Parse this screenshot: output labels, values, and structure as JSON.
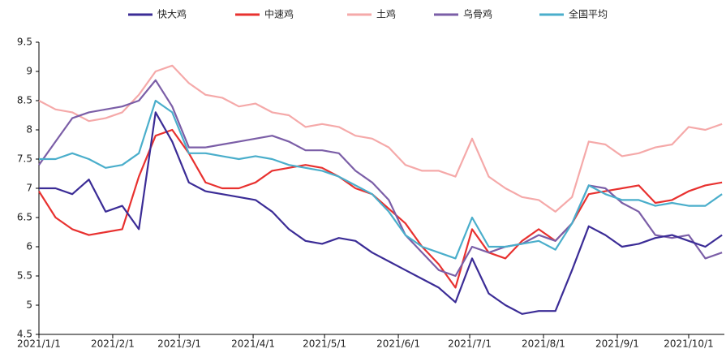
{
  "chart_data": {
    "type": "line",
    "x": [
      "2021/1/1",
      "2021/1/8",
      "2021/1/15",
      "2021/1/22",
      "2021/1/29",
      "2021/2/5",
      "2021/2/12",
      "2021/2/19",
      "2021/2/26",
      "2021/3/5",
      "2021/3/12",
      "2021/3/19",
      "2021/3/26",
      "2021/4/2",
      "2021/4/9",
      "2021/4/16",
      "2021/4/23",
      "2021/4/30",
      "2021/5/7",
      "2021/5/14",
      "2021/5/21",
      "2021/5/28",
      "2021/6/4",
      "2021/6/11",
      "2021/6/18",
      "2021/6/25",
      "2021/7/2",
      "2021/7/9",
      "2021/7/16",
      "2021/7/23",
      "2021/7/30",
      "2021/8/6",
      "2021/8/13",
      "2021/8/20",
      "2021/8/27",
      "2021/9/3",
      "2021/9/10",
      "2021/9/17",
      "2021/9/24",
      "2021/10/1",
      "2021/10/8",
      "2021/10/15"
    ],
    "series": [
      {
        "name": "快大鸡",
        "color": "#3b2c96",
        "values": [
          7.0,
          7.0,
          6.9,
          7.15,
          6.6,
          6.7,
          6.3,
          8.3,
          7.8,
          7.1,
          6.95,
          6.9,
          6.85,
          6.8,
          6.6,
          6.3,
          6.1,
          6.05,
          6.15,
          6.1,
          5.9,
          5.75,
          5.6,
          5.45,
          5.3,
          5.05,
          5.8,
          5.2,
          5.0,
          4.85,
          4.9,
          4.9,
          5.6,
          6.35,
          6.2,
          6.0,
          6.05,
          6.15,
          6.2,
          6.1,
          6.0,
          6.2
        ]
      },
      {
        "name": "中速鸡",
        "color": "#e8312f",
        "values": [
          6.95,
          6.5,
          6.3,
          6.2,
          6.25,
          6.3,
          7.2,
          7.9,
          8.0,
          7.6,
          7.1,
          7.0,
          7.0,
          7.1,
          7.3,
          7.35,
          7.4,
          7.35,
          7.2,
          7.0,
          6.9,
          6.65,
          6.4,
          6.0,
          5.7,
          5.3,
          6.3,
          5.9,
          5.8,
          6.1,
          6.3,
          6.1,
          6.4,
          6.9,
          6.95,
          7.0,
          7.05,
          6.75,
          6.8,
          6.95,
          7.05,
          7.1
        ]
      },
      {
        "name": "土鸡",
        "color": "#f5a9a9",
        "values": [
          8.5,
          8.35,
          8.3,
          8.15,
          8.2,
          8.3,
          8.6,
          9.0,
          9.1,
          8.8,
          8.6,
          8.55,
          8.4,
          8.45,
          8.3,
          8.25,
          8.05,
          8.1,
          8.05,
          7.9,
          7.85,
          7.7,
          7.4,
          7.3,
          7.3,
          7.2,
          7.85,
          7.2,
          7.0,
          6.85,
          6.8,
          6.6,
          6.85,
          7.8,
          7.75,
          7.55,
          7.6,
          7.7,
          7.75,
          8.05,
          8.0,
          8.1
        ]
      },
      {
        "name": "乌骨鸡",
        "color": "#7b5ea7",
        "values": [
          7.4,
          7.8,
          8.2,
          8.3,
          8.35,
          8.4,
          8.5,
          8.85,
          8.4,
          7.7,
          7.7,
          7.75,
          7.8,
          7.85,
          7.9,
          7.8,
          7.65,
          7.65,
          7.6,
          7.3,
          7.1,
          6.8,
          6.2,
          5.9,
          5.6,
          5.5,
          6.0,
          5.9,
          6.0,
          6.05,
          6.2,
          6.1,
          6.4,
          7.05,
          7.0,
          6.75,
          6.6,
          6.2,
          6.15,
          6.2,
          5.8,
          5.9
        ]
      },
      {
        "name": "全国平均",
        "color": "#4aaecb",
        "values": [
          7.5,
          7.5,
          7.6,
          7.5,
          7.35,
          7.4,
          7.6,
          8.5,
          8.3,
          7.6,
          7.6,
          7.55,
          7.5,
          7.55,
          7.5,
          7.4,
          7.35,
          7.3,
          7.2,
          7.05,
          6.9,
          6.6,
          6.2,
          6.0,
          5.9,
          5.8,
          6.5,
          6.0,
          6.0,
          6.05,
          6.1,
          5.95,
          6.4,
          7.05,
          6.9,
          6.8,
          6.8,
          6.7,
          6.75,
          6.7,
          6.7,
          6.9
        ]
      }
    ],
    "xlim": [
      "2021/1/1",
      "2021/10/16"
    ],
    "xticks": [
      "2021/1/1",
      "2021/2/1",
      "2021/3/1",
      "2021/4/1",
      "2021/5/1",
      "2021/6/1",
      "2021/7/1",
      "2021/8/1",
      "2021/9/1",
      "2021/10/1"
    ],
    "ylim": [
      4.5,
      9.5
    ],
    "yticks": [
      4.5,
      5,
      5.5,
      6,
      6.5,
      7,
      7.5,
      8,
      8.5,
      9,
      9.5
    ],
    "grid": false,
    "legend": "top"
  }
}
